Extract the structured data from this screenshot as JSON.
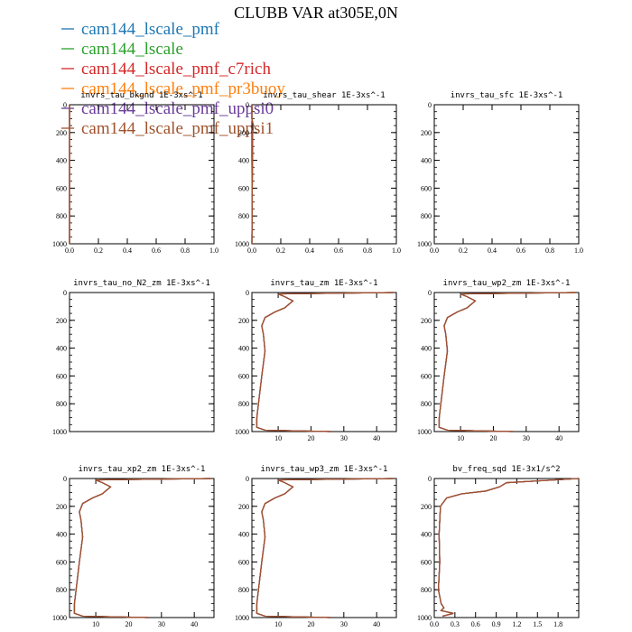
{
  "title": "CLUBB VAR at305E,0N",
  "legend": [
    {
      "label": "cam144_lscale_pmf",
      "color": "#1f77b4"
    },
    {
      "label": "cam144_lscale",
      "color": "#2ca02c"
    },
    {
      "label": "cam144_lscale_pmf_c7rich",
      "color": "#d62728"
    },
    {
      "label": "cam144_lscale_pmf_pr3buoy",
      "color": "#ff7f0e"
    },
    {
      "label": "cam144_lscale_pmf_uppsi0",
      "color": "#6a3d9a"
    },
    {
      "label": "cam144_lscale_pmf_uppsi1",
      "color": "#a0522d"
    }
  ],
  "chart_data": [
    {
      "type": "line",
      "title": "invrs_tau_bkgnd   1E-3xs^-1",
      "xlim": [
        0,
        1
      ],
      "ylim": [
        1000,
        0
      ],
      "xticks": [
        "0.0",
        "0.2",
        "0.4",
        "0.6",
        "0.8",
        "1.0"
      ],
      "yticks": [
        "0",
        "200",
        "400",
        "600",
        "800",
        "1000"
      ],
      "series": [
        {
          "x": [
            0.0,
            0.0
          ],
          "y": [
            0,
            1000
          ]
        }
      ]
    },
    {
      "type": "line",
      "title": "invrs_tau_shear   1E-3xs^-1",
      "xlim": [
        0,
        1
      ],
      "ylim": [
        1000,
        0
      ],
      "xticks": [
        "0.0",
        "0.2",
        "0.4",
        "0.6",
        "0.8",
        "1.0"
      ],
      "yticks": [
        "0",
        "200",
        "400",
        "600",
        "800",
        "1000"
      ],
      "series": [
        {
          "x": [
            0.0,
            0.0,
            0.01,
            0.005,
            0.0
          ],
          "y": [
            0,
            100,
            150,
            200,
            1000
          ]
        }
      ]
    },
    {
      "type": "line",
      "title": "invrs_tau_sfc   1E-3xs^-1",
      "xlim": [
        0,
        1
      ],
      "ylim": [
        1000,
        0
      ],
      "xticks": [
        "0.0",
        "0.2",
        "0.4",
        "0.6",
        "0.8",
        "1.0"
      ],
      "yticks": [
        "0",
        "200",
        "400",
        "600",
        "800",
        "1000"
      ],
      "series": []
    },
    {
      "type": "line",
      "title": "invrs_tau_no_N2_zm   1E-3xs^-1",
      "xlim": [
        0,
        1
      ],
      "ylim": [
        1000,
        0
      ],
      "xticks": [],
      "yticks": [
        "0",
        "200",
        "400",
        "600",
        "800",
        "1000"
      ],
      "series": []
    },
    {
      "type": "line",
      "title": "invrs_tau_zm   1E-3xs^-1",
      "xlim": [
        2,
        46
      ],
      "ylim": [
        1000,
        0
      ],
      "xticks": [
        "10",
        "20",
        "30",
        "40"
      ],
      "yticks": [
        "0",
        "200",
        "400",
        "600",
        "800",
        "1000"
      ],
      "series": [
        {
          "x": [
            45,
            10,
            12,
            14.5,
            12,
            9,
            6,
            5,
            5.5,
            6,
            5,
            4,
            3.5,
            3.5,
            6,
            26
          ],
          "y": [
            0,
            10,
            30,
            60,
            110,
            140,
            180,
            240,
            300,
            420,
            600,
            800,
            900,
            970,
            990,
            1000
          ]
        }
      ]
    },
    {
      "type": "line",
      "title": "invrs_tau_wp2_zm   1E-3xs^-1",
      "xlim": [
        2,
        46
      ],
      "ylim": [
        1000,
        0
      ],
      "xticks": [
        "10",
        "20",
        "30",
        "40"
      ],
      "yticks": [
        "0",
        "200",
        "400",
        "600",
        "800",
        "1000"
      ],
      "series": [
        {
          "x": [
            45,
            10,
            12,
            14.5,
            12,
            9,
            6,
            5,
            5.5,
            6,
            5,
            4,
            3.5,
            3.5,
            6,
            26
          ],
          "y": [
            0,
            10,
            30,
            60,
            110,
            140,
            180,
            240,
            300,
            420,
            600,
            800,
            900,
            970,
            990,
            1000
          ]
        }
      ]
    },
    {
      "type": "line",
      "title": "invrs_tau_xp2_zm   1E-3xs^-1",
      "xlim": [
        2,
        46
      ],
      "ylim": [
        1000,
        0
      ],
      "xticks": [
        "10",
        "20",
        "30",
        "40"
      ],
      "yticks": [
        "0",
        "200",
        "400",
        "600",
        "800",
        "1000"
      ],
      "series": [
        {
          "x": [
            45,
            10,
            12,
            14.5,
            12,
            9,
            6,
            5,
            5.5,
            6,
            5,
            4,
            3.5,
            3.5,
            6,
            26
          ],
          "y": [
            0,
            10,
            30,
            60,
            110,
            140,
            180,
            240,
            300,
            420,
            600,
            800,
            900,
            970,
            990,
            1000
          ]
        }
      ]
    },
    {
      "type": "line",
      "title": "invrs_tau_wp3_zm   1E-3xs^-1",
      "xlim": [
        2,
        46
      ],
      "ylim": [
        1000,
        0
      ],
      "xticks": [
        "10",
        "20",
        "30",
        "40"
      ],
      "yticks": [
        "0",
        "200",
        "400",
        "600",
        "800",
        "1000"
      ],
      "series": [
        {
          "x": [
            45,
            10,
            12,
            14.5,
            12,
            9,
            6,
            5,
            5.5,
            6,
            5,
            4,
            3.5,
            3.5,
            6,
            26
          ],
          "y": [
            0,
            10,
            30,
            60,
            110,
            140,
            180,
            240,
            300,
            420,
            600,
            800,
            900,
            970,
            990,
            1000
          ]
        }
      ]
    },
    {
      "type": "line",
      "title": "bv_freq_sqd   1E-3x1/s^2",
      "xlim": [
        0,
        2.1
      ],
      "ylim": [
        1000,
        0
      ],
      "xticks": [
        "0.0",
        "0.3",
        "0.6",
        "0.9",
        "1.2",
        "1.5",
        "1.8"
      ],
      "yticks": [
        "0",
        "200",
        "400",
        "600",
        "800",
        "1000"
      ],
      "series": [
        {
          "x": [
            2.1,
            1.05,
            0.95,
            0.75,
            0.4,
            0.18,
            0.09,
            0.07,
            0.08,
            0.06,
            0.1,
            0.14,
            0.1,
            0.28,
            0.12
          ],
          "y": [
            0,
            30,
            60,
            90,
            110,
            140,
            200,
            400,
            600,
            800,
            900,
            930,
            950,
            970,
            990
          ]
        }
      ]
    }
  ]
}
